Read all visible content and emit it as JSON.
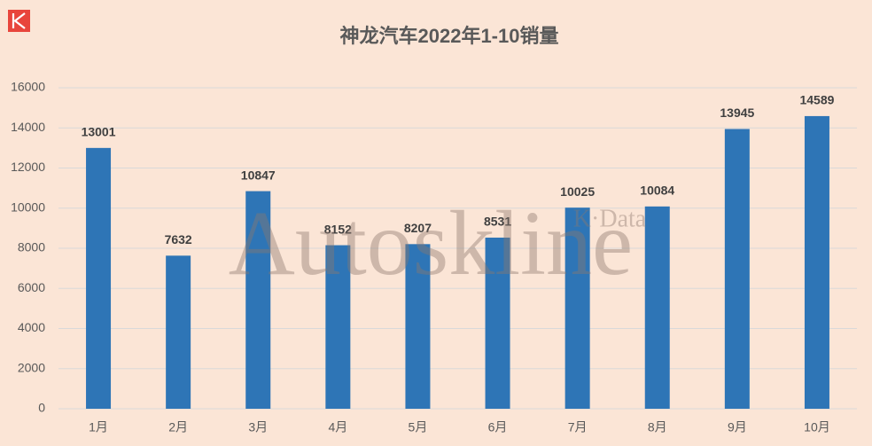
{
  "chart_data": {
    "type": "bar",
    "title": "神龙汽车2022年1-10销量",
    "categories": [
      "1月",
      "2月",
      "3月",
      "4月",
      "5月",
      "6月",
      "7月",
      "8月",
      "9月",
      "10月"
    ],
    "values": [
      13001,
      7632,
      10847,
      8152,
      8207,
      8531,
      10025,
      10084,
      13945,
      14589
    ],
    "color": "#2e75b6",
    "ylim": [
      0,
      16000
    ],
    "yticks": [
      0,
      2000,
      4000,
      6000,
      8000,
      10000,
      12000,
      14000,
      16000
    ],
    "grid": true,
    "watermark": "Autoskline",
    "watermark_sub": "K·Data"
  }
}
